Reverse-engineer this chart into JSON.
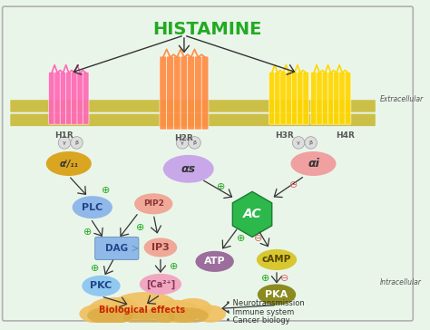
{
  "title": "HISTAMINE",
  "title_color": "#22aa22",
  "title_fontsize": 14,
  "background_color": "#eaf5ea",
  "membrane_color_top": "#c8b832",
  "membrane_color_bot": "#c8b832",
  "extracellular_label": "Extracellular",
  "intracellular_label": "Intracellular",
  "h1r_color": "#ff69b4",
  "h2r_color": "#ff8c42",
  "h3r_color": "#ffd700",
  "h4r_color": "#ffd700",
  "alpha_q_color": "#daa520",
  "alpha_s_color": "#c8a8e8",
  "alpha_i_color": "#f0a0a0",
  "plc_color": "#90b8e8",
  "pip2_color": "#f0a898",
  "dag_color": "#90b8e8",
  "ip3_color": "#f0a898",
  "ca2_color": "#f0a8c0",
  "pkc_color": "#90c8f0",
  "ac_color": "#2db84c",
  "atp_color": "#9b6e9b",
  "camp_color": "#d8c830",
  "pka_color": "#8b8b20",
  "bio_cloud_color": "#f0c060",
  "bio_cloud_color2": "#d8a840",
  "bio_label_color": "#cc2200",
  "plus_color": "#22aa22",
  "minus_color": "#dd6666",
  "effects": [
    "• Neurotransmission",
    "• Immune system",
    "• Cancer biology"
  ]
}
